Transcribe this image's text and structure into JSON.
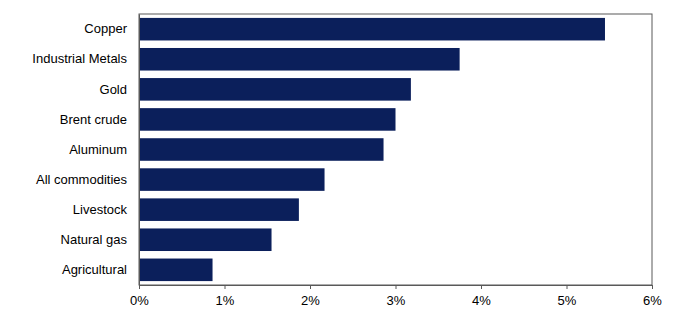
{
  "chart_data": {
    "type": "bar",
    "orientation": "horizontal",
    "categories": [
      "Copper",
      "Industrial Metals",
      "Gold",
      "Brent crude",
      "Aluminum",
      "All commodities",
      "Livestock",
      "Natural gas",
      "Agricultural"
    ],
    "values": [
      5.45,
      3.75,
      3.18,
      3.0,
      2.86,
      2.17,
      1.87,
      1.55,
      0.86
    ],
    "color": "#0b1f5b",
    "xlim": [
      0,
      6
    ],
    "xticks": [
      {
        "value": 0,
        "label": "0%"
      },
      {
        "value": 1,
        "label": "1%"
      },
      {
        "value": 2,
        "label": "2%"
      },
      {
        "value": 3,
        "label": "3%"
      },
      {
        "value": 4,
        "label": "4%"
      },
      {
        "value": 5,
        "label": "5%"
      },
      {
        "value": 6,
        "label": "6%"
      }
    ],
    "grid": false
  }
}
